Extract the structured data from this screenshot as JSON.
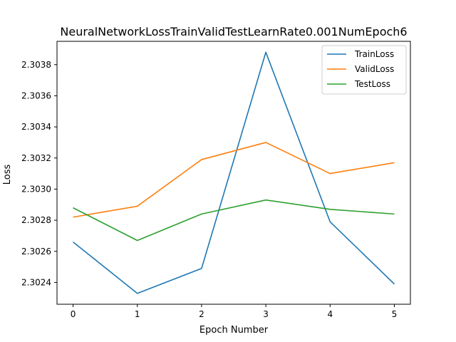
{
  "chart_data": {
    "type": "line",
    "title": "NeuralNetworkLossTrainValidTestLearnRate0.001NumEpoch6",
    "xlabel": "Epoch Number",
    "ylabel": "Loss",
    "x": [
      0,
      1,
      2,
      3,
      4,
      5
    ],
    "x_ticks": [
      "0",
      "1",
      "2",
      "3",
      "4",
      "5"
    ],
    "y_ticks": [
      "2.3024",
      "2.3026",
      "2.3028",
      "2.3030",
      "2.3032",
      "2.3034",
      "2.3036",
      "2.3038"
    ],
    "xlim": [
      -0.25,
      5.25
    ],
    "ylim": [
      2.30226,
      2.30395
    ],
    "grid": false,
    "legend_position": "upper right",
    "series": [
      {
        "name": "TrainLoss",
        "color": "#1f77b4",
        "values": [
          2.30266,
          2.30233,
          2.30249,
          2.30388,
          2.30279,
          2.30239
        ]
      },
      {
        "name": "ValidLoss",
        "color": "#ff7f0e",
        "values": [
          2.30282,
          2.30289,
          2.30319,
          2.3033,
          2.3031,
          2.30317
        ]
      },
      {
        "name": "TestLoss",
        "color": "#2ca02c",
        "values": [
          2.30288,
          2.30267,
          2.30284,
          2.30293,
          2.30287,
          2.30284
        ]
      }
    ]
  }
}
